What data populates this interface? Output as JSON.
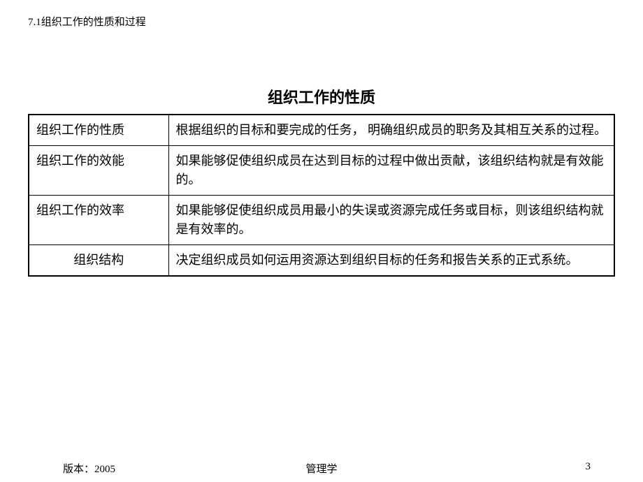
{
  "header": {
    "section_number": "7.1组织工作的性质和过程"
  },
  "title": "组织工作的性质",
  "table": {
    "rows": [
      {
        "label": "组织工作的性质",
        "label_centered": false,
        "content": "根据组织的目标和要完成的任务， 明确组织成员的职务及其相互关系的过程。"
      },
      {
        "label": "组织工作的效能",
        "label_centered": false,
        "content": "如果能够促使组织成员在达到目标的过程中做出贡献，该组织结构就是有效能的。"
      },
      {
        "label": "组织工作的效率",
        "label_centered": false,
        "content": "如果能够促使组织成员用最小的失误或资源完成任务或目标，则该组织结构就是有效率的。"
      },
      {
        "label": "组织结构",
        "label_centered": true,
        "content": "决定组织成员如何运用资源达到组织目标的任务和报告关系的正式系统。"
      }
    ]
  },
  "footer": {
    "version": "版本：2005",
    "course": "管理学",
    "page": "3"
  },
  "styling": {
    "background_color": "#ffffff",
    "text_color": "#000000",
    "border_color": "#000000",
    "header_fontsize": 15,
    "title_fontsize": 22,
    "table_fontsize": 18,
    "footer_fontsize": 15,
    "label_column_width": 200
  }
}
